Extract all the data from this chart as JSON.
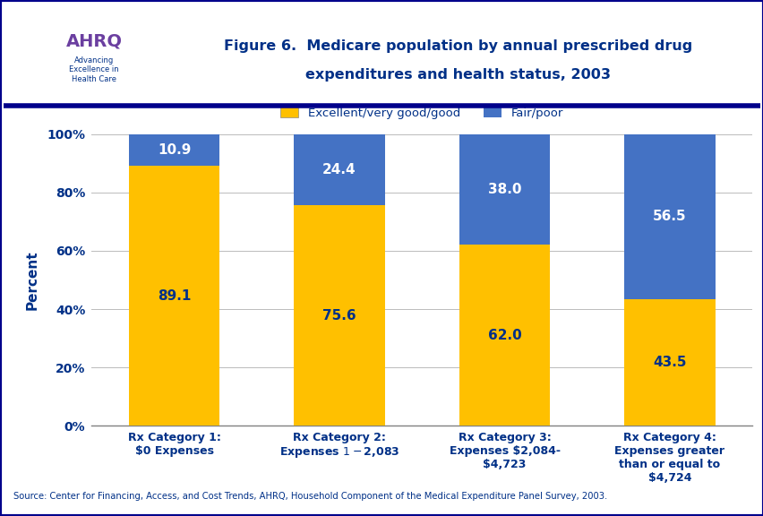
{
  "title_line1": "Figure 6.  Medicare population by annual prescribed drug",
  "title_line2": "expenditures and health status, 2003",
  "ylabel": "Percent",
  "categories": [
    "Rx Category 1:\n$0 Expenses",
    "Rx Category 2:\nExpenses $1-$2,083",
    "Rx Category 3:\nExpenses $2,084-\n$4,723",
    "Rx Category 4:\nExpenses greater\nthan or equal to\n$4,724"
  ],
  "excellent_values": [
    89.1,
    75.6,
    62.0,
    43.5
  ],
  "fairpoor_values": [
    10.9,
    24.4,
    38.0,
    56.5
  ],
  "excellent_color": "#FFC000",
  "fairpoor_color": "#4472C4",
  "bar_width": 0.55,
  "ylim": [
    0,
    100
  ],
  "yticks": [
    0,
    20,
    40,
    60,
    80,
    100
  ],
  "ytick_labels": [
    "0%",
    "20%",
    "40%",
    "60%",
    "80%",
    "100%"
  ],
  "legend_excellent": "Excellent/very good/good",
  "legend_fairpoor": "Fair/poor",
  "source_text": "Source: Center for Financing, Access, and Cost Trends, AHRQ, Household Component of the Medical Expenditure Panel Survey, 2003.",
  "title_color": "#003087",
  "label_color": "#003087",
  "background_color": "#FFFFFF",
  "header_line_color": "#00008B",
  "footer_bg_color": "#E8EAED",
  "text_color_on_yellow": "#003087",
  "text_color_on_blue": "#FFFFFF",
  "logo_bg_color": "#5BA4CF",
  "header_bg_color": "#FFFFFF",
  "axis_line_color": "#808080"
}
